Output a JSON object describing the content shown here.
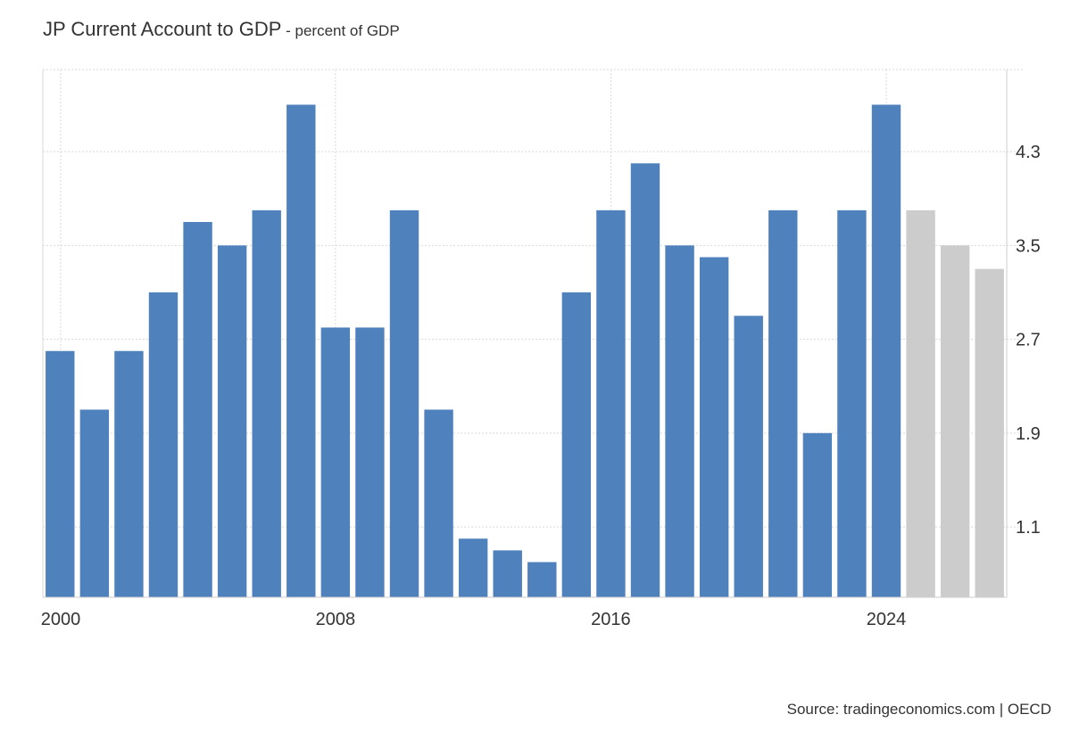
{
  "title": "JP Current Account to GDP",
  "title_separator": " - ",
  "subtitle": "percent of GDP",
  "source": "Source: tradingeconomics.com | OECD",
  "colors": {
    "actual": "#4f81bd",
    "forecast": "#cccccc",
    "grid": "#d9d9d9",
    "axis": "#cccccc"
  },
  "chart_data": {
    "type": "bar",
    "title": "JP Current Account to GDP",
    "subtitle": "percent of GDP",
    "categories": [
      2000,
      2001,
      2002,
      2003,
      2004,
      2005,
      2006,
      2007,
      2008,
      2009,
      2010,
      2011,
      2012,
      2013,
      2014,
      2015,
      2016,
      2017,
      2018,
      2019,
      2020,
      2021,
      2022,
      2023,
      2024,
      2025,
      2026,
      2027
    ],
    "series": [
      {
        "values": [
          2.6,
          2.1,
          2.6,
          3.1,
          3.7,
          3.5,
          3.8,
          4.7,
          2.8,
          2.8,
          3.8,
          2.1,
          1.0,
          0.9,
          0.8,
          3.1,
          3.8,
          4.2,
          3.5,
          3.4,
          2.9,
          3.8,
          1.9,
          3.8,
          4.7,
          3.8,
          3.5,
          3.3
        ],
        "forecast_from_index": 25
      }
    ],
    "x_tick_labels": [
      "2000",
      "2008",
      "2016",
      "2024"
    ],
    "x_tick_years": [
      2000,
      2008,
      2016,
      2024
    ],
    "y_tick_labels": [
      "1.1",
      "1.9",
      "2.7",
      "3.5",
      "4.3"
    ],
    "y_tick_values": [
      1.1,
      1.9,
      2.7,
      3.5,
      4.3
    ],
    "ylim": [
      0.5,
      5.0
    ],
    "y_axis_position": "right",
    "grid": true,
    "legend": false
  }
}
